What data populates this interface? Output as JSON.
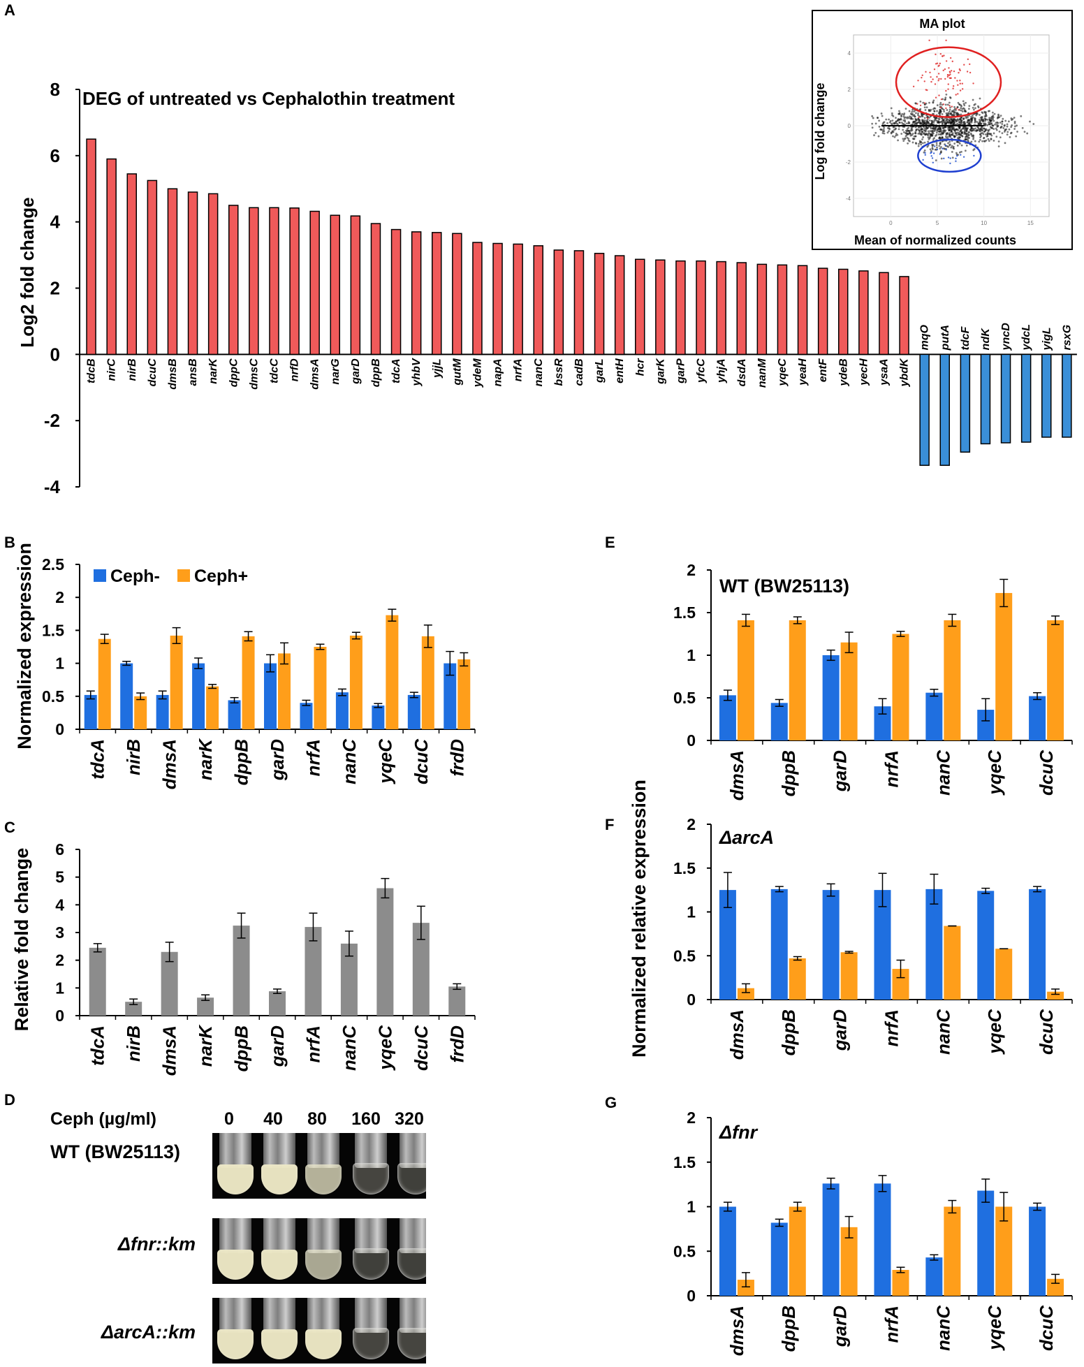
{
  "panel_letters": {
    "a": "A",
    "b": "B",
    "c": "C",
    "d": "D",
    "e": "E",
    "f": "F",
    "g": "G"
  },
  "colors": {
    "up": "#f05a5a",
    "down": "#3a8fd8",
    "ceph_minus": "#1f6fe0",
    "ceph_plus": "#ff9e1a",
    "gray": "#8c8c8c",
    "axis": "#000000"
  },
  "panel_d": {
    "header": "Ceph (µg/ml)",
    "concentrations": [
      "0",
      "40",
      "80",
      "160",
      "320"
    ],
    "strains": [
      "WT (BW25113)",
      "Δfnr::km",
      "ΔarcA::km"
    ],
    "turbidity": [
      [
        1.0,
        1.0,
        0.75,
        0.15,
        0.12
      ],
      [
        1.0,
        1.0,
        0.7,
        0.12,
        0.12
      ],
      [
        1.0,
        1.0,
        1.0,
        0.15,
        0.15
      ]
    ]
  },
  "f_g_shared_ylabel": "Normalized relative expression",
  "chart_data": [
    {
      "id": "A",
      "type": "bar",
      "title": "DEG of untreated vs Cephalothin treatment",
      "xlabel": "",
      "ylabel": "Log2 fold change",
      "ylim": [
        -4,
        8
      ],
      "yticks": [
        -4,
        -2,
        0,
        2,
        4,
        6,
        8
      ],
      "categories": [
        "tdcB",
        "nirC",
        "nirB",
        "dcuC",
        "dmsB",
        "ansB",
        "narK",
        "dppC",
        "dmsC",
        "tdcC",
        "nrfD",
        "dmsA",
        "narG",
        "garD",
        "dppB",
        "tdcA",
        "yhbV",
        "yjjL",
        "gutM",
        "ydeM",
        "napA",
        "nrfA",
        "nanC",
        "bssR",
        "cadB",
        "garL",
        "entH",
        "hcr",
        "garK",
        "garP",
        "yfcC",
        "yhjA",
        "dsdA",
        "nanM",
        "yqeC",
        "yeaH",
        "entF",
        "ydeB",
        "yecH",
        "ysaA",
        "ybdK",
        "mqO",
        "putA",
        "tdcF",
        "ndK",
        "yncD",
        "ydcL",
        "yigL",
        "rsxG"
      ],
      "values": [
        6.5,
        5.9,
        5.45,
        5.25,
        5.0,
        4.9,
        4.85,
        4.5,
        4.43,
        4.43,
        4.42,
        4.32,
        4.2,
        4.18,
        3.95,
        3.77,
        3.7,
        3.68,
        3.65,
        3.38,
        3.35,
        3.33,
        3.28,
        3.15,
        3.13,
        3.05,
        2.98,
        2.87,
        2.85,
        2.82,
        2.82,
        2.8,
        2.77,
        2.72,
        2.7,
        2.68,
        2.6,
        2.57,
        2.52,
        2.47,
        2.35,
        -3.35,
        -3.35,
        -2.95,
        -2.7,
        -2.67,
        -2.65,
        -2.5,
        -2.5
      ]
    },
    {
      "id": "A-inset",
      "type": "scatter",
      "title": "MA plot",
      "xlabel": "Mean of normalized counts",
      "ylabel": "Log fold change",
      "xlim": [
        -4,
        17
      ],
      "ylim": [
        -5,
        5
      ],
      "xticks": [
        0,
        5,
        10,
        15
      ],
      "yticks": [
        -4,
        -2,
        0,
        2,
        4
      ],
      "clusters": [
        {
          "name": "bulk",
          "color": "#111111",
          "center": [
            6,
            0
          ],
          "spread": [
            3.2,
            0.55
          ],
          "count": 1300
        },
        {
          "name": "up-regulated",
          "color": "#e03030",
          "center": [
            6,
            2.6
          ],
          "spread": [
            1.5,
            0.9
          ],
          "count": 90
        },
        {
          "name": "down-regulated",
          "color": "#2050d0",
          "center": [
            6,
            -1.6
          ],
          "spread": [
            1.2,
            0.25
          ],
          "count": 25
        }
      ]
    },
    {
      "id": "B",
      "type": "bar",
      "title": "",
      "xlabel": "",
      "ylabel": "Normalized expression",
      "ylim": [
        0,
        2.5
      ],
      "yticks": [
        "0",
        "0.5",
        "1",
        "1.5",
        "2",
        "2.5"
      ],
      "legend": [
        "Ceph-",
        "Ceph+"
      ],
      "categories": [
        "tdcA",
        "nirB",
        "dmsA",
        "narK",
        "dppB",
        "garD",
        "nrfA",
        "nanC",
        "yqeC",
        "dcuC",
        "frdD"
      ],
      "series": [
        {
          "name": "Ceph-",
          "values": [
            0.52,
            1.0,
            0.52,
            1.0,
            0.44,
            1.0,
            0.4,
            0.56,
            0.36,
            0.52,
            1.0
          ],
          "errors": [
            0.06,
            0.03,
            0.06,
            0.08,
            0.04,
            0.13,
            0.04,
            0.05,
            0.03,
            0.04,
            0.18
          ]
        },
        {
          "name": "Ceph+",
          "values": [
            1.37,
            0.5,
            1.42,
            0.65,
            1.41,
            1.15,
            1.25,
            1.42,
            1.73,
            1.41,
            1.06
          ],
          "errors": [
            0.07,
            0.05,
            0.12,
            0.03,
            0.07,
            0.16,
            0.04,
            0.05,
            0.09,
            0.17,
            0.1
          ]
        }
      ]
    },
    {
      "id": "C",
      "type": "bar",
      "title": "",
      "xlabel": "",
      "ylabel": "Relative fold change",
      "ylim": [
        0,
        6
      ],
      "yticks": [
        "0",
        "1",
        "2",
        "3",
        "4",
        "5",
        "6"
      ],
      "categories": [
        "tdcA",
        "nirB",
        "dmsA",
        "narK",
        "dppB",
        "garD",
        "nrfA",
        "nanC",
        "yqeC",
        "dcuC",
        "frdD"
      ],
      "values": [
        2.45,
        0.5,
        2.3,
        0.65,
        3.25,
        0.88,
        3.2,
        2.6,
        4.6,
        3.35,
        1.05
      ],
      "errors": [
        0.15,
        0.1,
        0.35,
        0.1,
        0.45,
        0.08,
        0.5,
        0.45,
        0.35,
        0.6,
        0.1
      ]
    },
    {
      "id": "E",
      "type": "bar",
      "title": "WT (BW25113)",
      "xlabel": "",
      "ylabel": "",
      "ylim": [
        0,
        2
      ],
      "yticks": [
        "0",
        "0.5",
        "1",
        "1.5",
        "2"
      ],
      "categories": [
        "dmsA",
        "dppB",
        "garD",
        "nrfA",
        "nanC",
        "yqeC",
        "dcuC"
      ],
      "series": [
        {
          "name": "Ceph-",
          "values": [
            0.53,
            0.44,
            1.0,
            0.4,
            0.56,
            0.36,
            0.52
          ],
          "errors": [
            0.06,
            0.04,
            0.06,
            0.09,
            0.04,
            0.13,
            0.04
          ]
        },
        {
          "name": "Ceph+",
          "values": [
            1.41,
            1.41,
            1.15,
            1.25,
            1.41,
            1.73,
            1.41
          ],
          "errors": [
            0.07,
            0.04,
            0.12,
            0.03,
            0.07,
            0.16,
            0.05
          ]
        }
      ]
    },
    {
      "id": "F",
      "type": "bar",
      "title": "ΔarcA",
      "xlabel": "",
      "ylabel": "Normalized relative expression",
      "ylim": [
        0,
        2
      ],
      "yticks": [
        "0",
        "0.5",
        "1",
        "1.5",
        "2"
      ],
      "categories": [
        "dmsA",
        "dppB",
        "garD",
        "nrfA",
        "nanC",
        "yqeC",
        "dcuC"
      ],
      "series": [
        {
          "name": "Ceph-",
          "values": [
            1.25,
            1.26,
            1.25,
            1.25,
            1.26,
            1.24,
            1.26
          ],
          "errors": [
            0.2,
            0.03,
            0.07,
            0.19,
            0.17,
            0.03,
            0.03
          ]
        },
        {
          "name": "Ceph+",
          "values": [
            0.13,
            0.47,
            0.54,
            0.35,
            0.84,
            0.58,
            0.09
          ],
          "errors": [
            0.05,
            0.02,
            0.01,
            0.1,
            0.0,
            0.0,
            0.03
          ]
        }
      ]
    },
    {
      "id": "G",
      "type": "bar",
      "title": "Δfnr",
      "xlabel": "",
      "ylabel": "",
      "ylim": [
        0,
        2
      ],
      "yticks": [
        "0",
        "0.5",
        "1",
        "1.5",
        "2"
      ],
      "categories": [
        "dmsA",
        "dppB",
        "garD",
        "nrfA",
        "nanC",
        "yqeC",
        "dcuC"
      ],
      "series": [
        {
          "name": "Ceph-",
          "values": [
            1.0,
            0.82,
            1.26,
            1.26,
            0.43,
            1.18,
            1.0
          ],
          "errors": [
            0.05,
            0.04,
            0.06,
            0.09,
            0.03,
            0.13,
            0.04
          ]
        },
        {
          "name": "Ceph+",
          "values": [
            0.18,
            1.0,
            0.77,
            0.29,
            1.0,
            1.0,
            0.19
          ],
          "errors": [
            0.08,
            0.05,
            0.12,
            0.03,
            0.07,
            0.16,
            0.05
          ]
        }
      ]
    }
  ]
}
